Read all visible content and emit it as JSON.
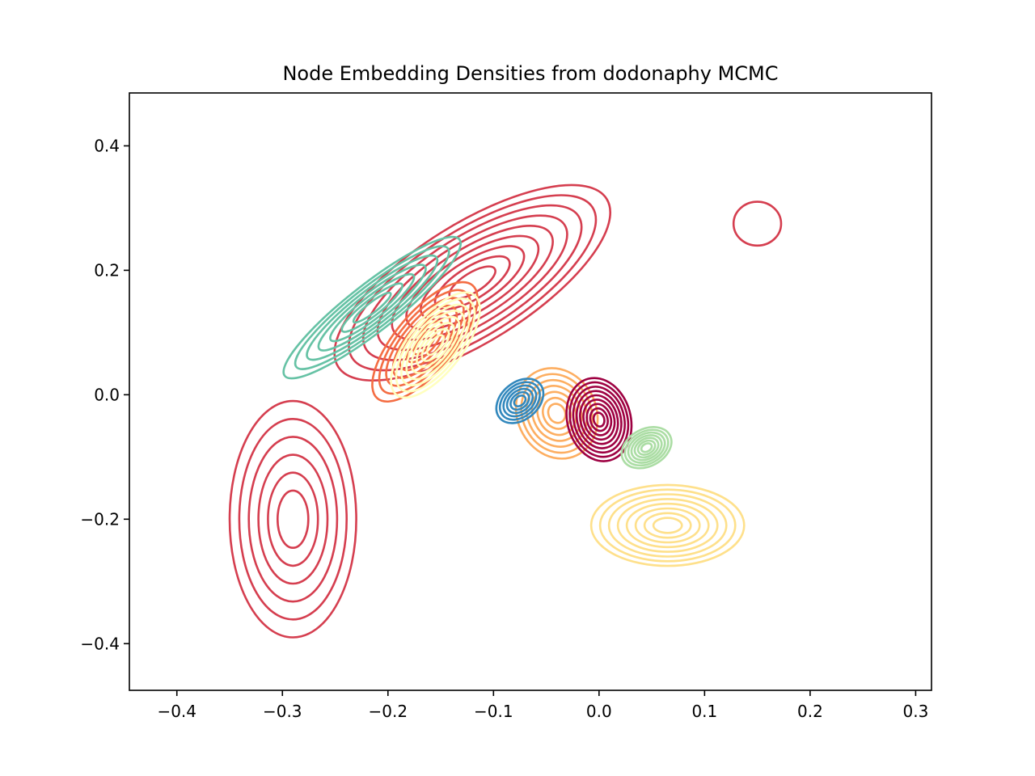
{
  "chart_data": {
    "type": "contour",
    "title": "Node Embedding Densities from dodonaphy MCMC",
    "xlabel": "",
    "ylabel": "",
    "xlim": [
      -0.445,
      0.315
    ],
    "ylim": [
      -0.475,
      0.485
    ],
    "xticks": [
      -0.4,
      -0.3,
      -0.2,
      -0.1,
      0.0,
      0.1,
      0.2,
      0.3
    ],
    "xtick_labels": [
      "−0.4",
      "−0.3",
      "−0.2",
      "−0.1",
      "0.0",
      "0.1",
      "0.2",
      "0.3"
    ],
    "yticks": [
      -0.4,
      -0.2,
      0.0,
      0.2,
      0.4
    ],
    "ytick_labels": [
      "−0.4",
      "−0.2",
      "0.0",
      "0.2",
      "0.4"
    ],
    "grid": false,
    "legend": "none",
    "series": [
      {
        "color": "#d53e4f",
        "lobes": [
          {
            "cx": -0.12,
            "cy": 0.18,
            "rx": 0.3,
            "ry": 0.07,
            "angle": 32,
            "levels": 9
          },
          {
            "cx": -0.29,
            "cy": -0.2,
            "rx": 0.12,
            "ry": 0.14,
            "angle": 0,
            "levels": 6
          },
          {
            "cx": 0.15,
            "cy": 0.275,
            "rx": 0.045,
            "ry": 0.026,
            "angle": 0,
            "levels": 1
          }
        ]
      },
      {
        "color": "#66c2a5",
        "lobes": [
          {
            "cx": -0.215,
            "cy": 0.14,
            "rx": 0.21,
            "ry": 0.028,
            "angle": 38,
            "levels": 7
          }
        ]
      },
      {
        "color": "#f46d43",
        "lobes": [
          {
            "cx": -0.165,
            "cy": 0.085,
            "rx": 0.14,
            "ry": 0.035,
            "angle": 50,
            "levels": 7
          }
        ]
      },
      {
        "color": "#fee08b",
        "lobes": [
          {
            "cx": 0.065,
            "cy": -0.21,
            "rx": 0.145,
            "ry": 0.048,
            "angle": 0,
            "levels": 8
          }
        ]
      },
      {
        "color": "#ffffbf",
        "lobes": [
          {
            "cx": -0.155,
            "cy": 0.08,
            "rx": 0.12,
            "ry": 0.032,
            "angle": 52,
            "levels": 8
          }
        ]
      },
      {
        "color": "#fdae61",
        "lobes": [
          {
            "cx": -0.04,
            "cy": -0.03,
            "rx": 0.075,
            "ry": 0.055,
            "angle": 25,
            "levels": 7
          }
        ]
      },
      {
        "color": "#9e0142",
        "lobes": [
          {
            "cx": 0.0,
            "cy": -0.04,
            "rx": 0.06,
            "ry": 0.05,
            "angle": 15,
            "levels": 9
          }
        ]
      },
      {
        "color": "#abdda4",
        "lobes": [
          {
            "cx": 0.045,
            "cy": -0.085,
            "rx": 0.05,
            "ry": 0.022,
            "angle": 28,
            "levels": 7
          }
        ]
      },
      {
        "color": "#3288bd",
        "lobes": [
          {
            "cx": -0.075,
            "cy": -0.01,
            "rx": 0.05,
            "ry": 0.022,
            "angle": 40,
            "levels": 6
          }
        ]
      }
    ]
  }
}
